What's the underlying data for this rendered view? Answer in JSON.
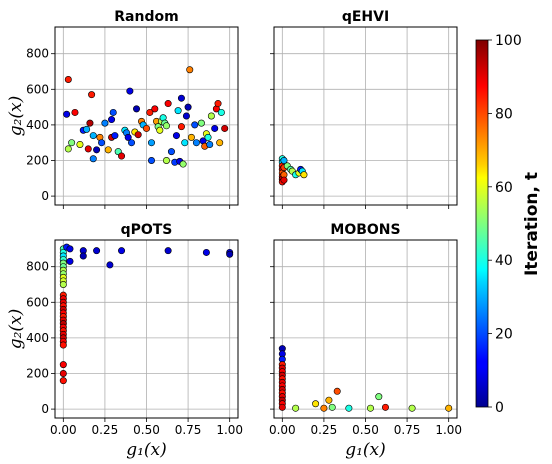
{
  "chart_data": [
    {
      "panel": "random",
      "type": "scatter",
      "title": "Random",
      "xlabel": "",
      "ylabel": "g₂(x)",
      "xlim": [
        -0.05,
        1.05
      ],
      "ylim": [
        -50,
        950
      ],
      "xticks": [
        "0.00",
        "0.25",
        "0.50",
        "0.75",
        "1.00"
      ],
      "yticks": [
        "0",
        "200",
        "400",
        "600",
        "800"
      ],
      "show_xticklabels": false,
      "show_yticklabels": true,
      "grid": true,
      "points": [
        {
          "x": 0.02,
          "y": 460,
          "t": 10
        },
        {
          "x": 0.03,
          "y": 655,
          "t": 85
        },
        {
          "x": 0.03,
          "y": 265,
          "t": 55
        },
        {
          "x": 0.05,
          "y": 300,
          "t": 50
        },
        {
          "x": 0.07,
          "y": 470,
          "t": 88
        },
        {
          "x": 0.1,
          "y": 290,
          "t": 60
        },
        {
          "x": 0.12,
          "y": 370,
          "t": 15
        },
        {
          "x": 0.14,
          "y": 375,
          "t": 30
        },
        {
          "x": 0.15,
          "y": 265,
          "t": 90
        },
        {
          "x": 0.16,
          "y": 410,
          "t": 95
        },
        {
          "x": 0.17,
          "y": 570,
          "t": 85
        },
        {
          "x": 0.18,
          "y": 340,
          "t": 30
        },
        {
          "x": 0.18,
          "y": 210,
          "t": 25
        },
        {
          "x": 0.2,
          "y": 260,
          "t": 5
        },
        {
          "x": 0.22,
          "y": 330,
          "t": 75
        },
        {
          "x": 0.23,
          "y": 300,
          "t": 20
        },
        {
          "x": 0.25,
          "y": 410,
          "t": 25
        },
        {
          "x": 0.27,
          "y": 260,
          "t": 70
        },
        {
          "x": 0.29,
          "y": 430,
          "t": 10
        },
        {
          "x": 0.29,
          "y": 330,
          "t": 92
        },
        {
          "x": 0.3,
          "y": 470,
          "t": 20
        },
        {
          "x": 0.31,
          "y": 340,
          "t": 15
        },
        {
          "x": 0.33,
          "y": 250,
          "t": 45
        },
        {
          "x": 0.35,
          "y": 225,
          "t": 90
        },
        {
          "x": 0.37,
          "y": 370,
          "t": 35
        },
        {
          "x": 0.38,
          "y": 355,
          "t": 25
        },
        {
          "x": 0.39,
          "y": 330,
          "t": 10
        },
        {
          "x": 0.4,
          "y": 590,
          "t": 10
        },
        {
          "x": 0.41,
          "y": 300,
          "t": 20
        },
        {
          "x": 0.43,
          "y": 360,
          "t": 65
        },
        {
          "x": 0.44,
          "y": 490,
          "t": 5
        },
        {
          "x": 0.45,
          "y": 345,
          "t": 92
        },
        {
          "x": 0.47,
          "y": 420,
          "t": 75
        },
        {
          "x": 0.48,
          "y": 400,
          "t": 30
        },
        {
          "x": 0.5,
          "y": 380,
          "t": 80
        },
        {
          "x": 0.52,
          "y": 470,
          "t": 85
        },
        {
          "x": 0.53,
          "y": 300,
          "t": 28
        },
        {
          "x": 0.53,
          "y": 200,
          "t": 20
        },
        {
          "x": 0.55,
          "y": 490,
          "t": 88
        },
        {
          "x": 0.56,
          "y": 420,
          "t": 72
        },
        {
          "x": 0.57,
          "y": 390,
          "t": 50
        },
        {
          "x": 0.58,
          "y": 370,
          "t": 60
        },
        {
          "x": 0.59,
          "y": 420,
          "t": 55
        },
        {
          "x": 0.6,
          "y": 440,
          "t": 40
        },
        {
          "x": 0.61,
          "y": 410,
          "t": 48
        },
        {
          "x": 0.62,
          "y": 395,
          "t": 52
        },
        {
          "x": 0.63,
          "y": 520,
          "t": 88
        },
        {
          "x": 0.62,
          "y": 200,
          "t": 55
        },
        {
          "x": 0.65,
          "y": 250,
          "t": 20
        },
        {
          "x": 0.67,
          "y": 190,
          "t": 18
        },
        {
          "x": 0.68,
          "y": 340,
          "t": 10
        },
        {
          "x": 0.69,
          "y": 480,
          "t": 35
        },
        {
          "x": 0.7,
          "y": 195,
          "t": 10
        },
        {
          "x": 0.71,
          "y": 390,
          "t": 85
        },
        {
          "x": 0.71,
          "y": 550,
          "t": 8
        },
        {
          "x": 0.72,
          "y": 180,
          "t": 52
        },
        {
          "x": 0.73,
          "y": 300,
          "t": 35
        },
        {
          "x": 0.74,
          "y": 450,
          "t": 8
        },
        {
          "x": 0.75,
          "y": 500,
          "t": 5
        },
        {
          "x": 0.76,
          "y": 710,
          "t": 75
        },
        {
          "x": 0.77,
          "y": 330,
          "t": 70
        },
        {
          "x": 0.79,
          "y": 400,
          "t": 20
        },
        {
          "x": 0.8,
          "y": 300,
          "t": 25
        },
        {
          "x": 0.83,
          "y": 410,
          "t": 50
        },
        {
          "x": 0.84,
          "y": 310,
          "t": 10
        },
        {
          "x": 0.85,
          "y": 280,
          "t": 78
        },
        {
          "x": 0.86,
          "y": 350,
          "t": 60
        },
        {
          "x": 0.87,
          "y": 330,
          "t": 40
        },
        {
          "x": 0.88,
          "y": 290,
          "t": 25
        },
        {
          "x": 0.89,
          "y": 450,
          "t": 55
        },
        {
          "x": 0.91,
          "y": 380,
          "t": 10
        },
        {
          "x": 0.92,
          "y": 490,
          "t": 88
        },
        {
          "x": 0.93,
          "y": 520,
          "t": 85
        },
        {
          "x": 0.94,
          "y": 300,
          "t": 70
        },
        {
          "x": 0.95,
          "y": 470,
          "t": 40
        },
        {
          "x": 0.97,
          "y": 380,
          "t": 92
        }
      ]
    },
    {
      "panel": "qehvi",
      "type": "scatter",
      "title": "qEHVI",
      "xlabel": "",
      "ylabel": "",
      "xlim": [
        -0.05,
        1.05
      ],
      "ylim": [
        -50,
        950
      ],
      "xticks": [
        "0.00",
        "0.25",
        "0.50",
        "0.75",
        "1.00"
      ],
      "yticks": [
        "0",
        "200",
        "400",
        "600",
        "800"
      ],
      "show_xticklabels": false,
      "show_yticklabels": false,
      "grid": true,
      "points": [
        {
          "x": 0.0,
          "y": 210,
          "t": 40
        },
        {
          "x": 0.0,
          "y": 190,
          "t": 35
        },
        {
          "x": 0.0,
          "y": 170,
          "t": 85
        },
        {
          "x": 0.0,
          "y": 150,
          "t": 90
        },
        {
          "x": 0.0,
          "y": 130,
          "t": 80
        },
        {
          "x": 0.0,
          "y": 110,
          "t": 88
        },
        {
          "x": 0.0,
          "y": 95,
          "t": 92
        },
        {
          "x": 0.0,
          "y": 80,
          "t": 86
        },
        {
          "x": 0.01,
          "y": 200,
          "t": 30
        },
        {
          "x": 0.01,
          "y": 160,
          "t": 82
        },
        {
          "x": 0.01,
          "y": 120,
          "t": 78
        },
        {
          "x": 0.01,
          "y": 90,
          "t": 90
        },
        {
          "x": 0.03,
          "y": 170,
          "t": 50
        },
        {
          "x": 0.05,
          "y": 150,
          "t": 45
        },
        {
          "x": 0.06,
          "y": 140,
          "t": 55
        },
        {
          "x": 0.08,
          "y": 120,
          "t": 40
        },
        {
          "x": 0.1,
          "y": 130,
          "t": 60
        },
        {
          "x": 0.11,
          "y": 150,
          "t": 15
        },
        {
          "x": 0.12,
          "y": 140,
          "t": 35
        },
        {
          "x": 0.13,
          "y": 120,
          "t": 65
        }
      ]
    },
    {
      "panel": "qpots",
      "type": "scatter",
      "title": "qPOTS",
      "xlabel": "g₁(x)",
      "ylabel": "g₂(x)",
      "xlim": [
        -0.05,
        1.05
      ],
      "ylim": [
        -50,
        950
      ],
      "xticks": [
        "0.00",
        "0.25",
        "0.50",
        "0.75",
        "1.00"
      ],
      "yticks": [
        "0",
        "200",
        "400",
        "600",
        "800"
      ],
      "show_xticklabels": true,
      "show_yticklabels": true,
      "grid": true,
      "points": [
        {
          "x": 0.0,
          "y": 900,
          "t": 45
        },
        {
          "x": 0.0,
          "y": 880,
          "t": 40
        },
        {
          "x": 0.0,
          "y": 860,
          "t": 35
        },
        {
          "x": 0.0,
          "y": 840,
          "t": 42
        },
        {
          "x": 0.0,
          "y": 820,
          "t": 50
        },
        {
          "x": 0.0,
          "y": 800,
          "t": 48
        },
        {
          "x": 0.0,
          "y": 780,
          "t": 55
        },
        {
          "x": 0.0,
          "y": 760,
          "t": 52
        },
        {
          "x": 0.0,
          "y": 740,
          "t": 60
        },
        {
          "x": 0.0,
          "y": 720,
          "t": 58
        },
        {
          "x": 0.0,
          "y": 700,
          "t": 55
        },
        {
          "x": 0.0,
          "y": 640,
          "t": 85
        },
        {
          "x": 0.0,
          "y": 620,
          "t": 88
        },
        {
          "x": 0.0,
          "y": 600,
          "t": 90
        },
        {
          "x": 0.0,
          "y": 580,
          "t": 86
        },
        {
          "x": 0.0,
          "y": 560,
          "t": 92
        },
        {
          "x": 0.0,
          "y": 540,
          "t": 88
        },
        {
          "x": 0.0,
          "y": 520,
          "t": 85
        },
        {
          "x": 0.0,
          "y": 500,
          "t": 90
        },
        {
          "x": 0.0,
          "y": 480,
          "t": 94
        },
        {
          "x": 0.0,
          "y": 460,
          "t": 88
        },
        {
          "x": 0.0,
          "y": 440,
          "t": 86
        },
        {
          "x": 0.0,
          "y": 420,
          "t": 90
        },
        {
          "x": 0.0,
          "y": 400,
          "t": 92
        },
        {
          "x": 0.0,
          "y": 380,
          "t": 88
        },
        {
          "x": 0.0,
          "y": 360,
          "t": 86
        },
        {
          "x": 0.0,
          "y": 250,
          "t": 88
        },
        {
          "x": 0.0,
          "y": 200,
          "t": 90
        },
        {
          "x": 0.0,
          "y": 160,
          "t": 86
        },
        {
          "x": 0.02,
          "y": 910,
          "t": 15
        },
        {
          "x": 0.04,
          "y": 900,
          "t": 10
        },
        {
          "x": 0.04,
          "y": 830,
          "t": 10
        },
        {
          "x": 0.12,
          "y": 890,
          "t": 8
        },
        {
          "x": 0.12,
          "y": 860,
          "t": 5
        },
        {
          "x": 0.2,
          "y": 890,
          "t": 8
        },
        {
          "x": 0.28,
          "y": 810,
          "t": 8
        },
        {
          "x": 0.35,
          "y": 890,
          "t": 10
        },
        {
          "x": 0.63,
          "y": 890,
          "t": 8
        },
        {
          "x": 0.86,
          "y": 880,
          "t": 10
        },
        {
          "x": 1.0,
          "y": 880,
          "t": 10
        },
        {
          "x": 1.0,
          "y": 870,
          "t": 5
        }
      ]
    },
    {
      "panel": "mobons",
      "type": "scatter",
      "title": "MOBONS",
      "xlabel": "g₁(x)",
      "ylabel": "",
      "xlim": [
        -0.05,
        1.05
      ],
      "ylim": [
        -50,
        950
      ],
      "xticks": [
        "0.00",
        "0.25",
        "0.50",
        "0.75",
        "1.00"
      ],
      "yticks": [
        "0",
        "200",
        "400",
        "600",
        "800"
      ],
      "show_xticklabels": true,
      "show_yticklabels": false,
      "grid": true,
      "points": [
        {
          "x": 0.0,
          "y": 340,
          "t": 5
        },
        {
          "x": 0.0,
          "y": 310,
          "t": 10
        },
        {
          "x": 0.0,
          "y": 280,
          "t": 15
        },
        {
          "x": 0.0,
          "y": 250,
          "t": 85
        },
        {
          "x": 0.0,
          "y": 230,
          "t": 90
        },
        {
          "x": 0.0,
          "y": 210,
          "t": 88
        },
        {
          "x": 0.0,
          "y": 190,
          "t": 92
        },
        {
          "x": 0.0,
          "y": 170,
          "t": 86
        },
        {
          "x": 0.0,
          "y": 150,
          "t": 90
        },
        {
          "x": 0.0,
          "y": 130,
          "t": 88
        },
        {
          "x": 0.0,
          "y": 110,
          "t": 92
        },
        {
          "x": 0.0,
          "y": 90,
          "t": 86
        },
        {
          "x": 0.0,
          "y": 70,
          "t": 90
        },
        {
          "x": 0.0,
          "y": 50,
          "t": 94
        },
        {
          "x": 0.0,
          "y": 30,
          "t": 88
        },
        {
          "x": 0.0,
          "y": 10,
          "t": 90
        },
        {
          "x": 0.08,
          "y": 5,
          "t": 55
        },
        {
          "x": 0.2,
          "y": 30,
          "t": 65
        },
        {
          "x": 0.25,
          "y": 5,
          "t": 75
        },
        {
          "x": 0.28,
          "y": 50,
          "t": 70
        },
        {
          "x": 0.3,
          "y": 10,
          "t": 50
        },
        {
          "x": 0.33,
          "y": 100,
          "t": 80
        },
        {
          "x": 0.4,
          "y": 5,
          "t": 40
        },
        {
          "x": 0.53,
          "y": 5,
          "t": 55
        },
        {
          "x": 0.58,
          "y": 70,
          "t": 50
        },
        {
          "x": 0.62,
          "y": 10,
          "t": 85
        },
        {
          "x": 0.78,
          "y": 5,
          "t": 55
        },
        {
          "x": 1.0,
          "y": 5,
          "t": 70
        }
      ]
    }
  ],
  "colorbar": {
    "label": "Iteration, t",
    "min": 0,
    "max": 100,
    "ticks": [
      "0",
      "20",
      "40",
      "60",
      "80",
      "100"
    ],
    "colormap": "jet"
  }
}
